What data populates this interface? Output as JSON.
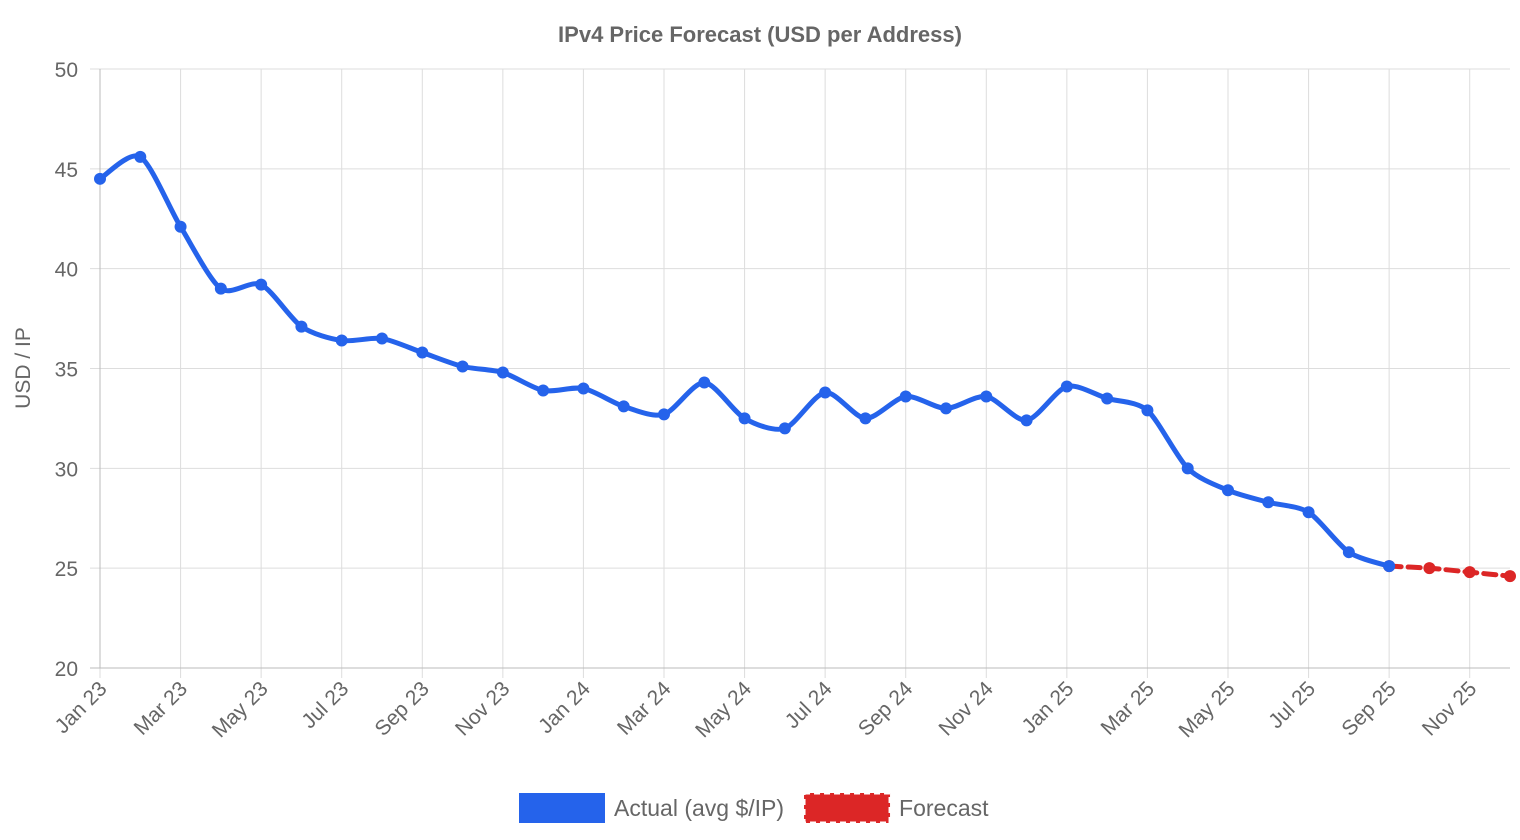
{
  "chart_data": {
    "type": "line",
    "title": "IPv4 Price Forecast (USD per Address)",
    "y_label": "USD / IP",
    "categories": [
      "Jan 23",
      null,
      "Mar 23",
      null,
      "May 23",
      null,
      "Jul 23",
      null,
      "Sep 23",
      null,
      "Nov 23",
      null,
      "Jan 24",
      null,
      "Mar 24",
      null,
      "May 24",
      null,
      "Jul 24",
      null,
      "Sep 24",
      null,
      "Nov 24",
      null,
      "Jan 25",
      null,
      "Mar 25",
      null,
      "May 25",
      null,
      "Jul 25",
      null,
      "Sep 25",
      null,
      "Nov 25",
      null
    ],
    "series": [
      {
        "name": "Actual (avg $/IP)",
        "color": "#2563eb",
        "dashed": false,
        "values": [
          44.5,
          45.6,
          42.1,
          39.0,
          39.2,
          37.1,
          36.4,
          36.5,
          35.8,
          35.1,
          34.8,
          33.9,
          34.0,
          33.1,
          32.7,
          34.3,
          32.5,
          32.0,
          33.8,
          32.5,
          33.6,
          33.0,
          33.6,
          32.4,
          34.1,
          33.5,
          32.9,
          30.0,
          28.9,
          28.3,
          27.8,
          25.8,
          25.1,
          null,
          null,
          null
        ]
      },
      {
        "name": "Forecast",
        "color": "#dc2626",
        "dashed": true,
        "values": [
          null,
          null,
          null,
          null,
          null,
          null,
          null,
          null,
          null,
          null,
          null,
          null,
          null,
          null,
          null,
          null,
          null,
          null,
          null,
          null,
          null,
          null,
          null,
          null,
          null,
          null,
          null,
          null,
          null,
          null,
          null,
          null,
          25.1,
          25.0,
          24.8,
          24.6
        ]
      }
    ],
    "ylim": [
      20,
      50
    ],
    "yticks": [
      20,
      25,
      30,
      35,
      40,
      45,
      50
    ],
    "grid": true,
    "legend": "bottom"
  }
}
